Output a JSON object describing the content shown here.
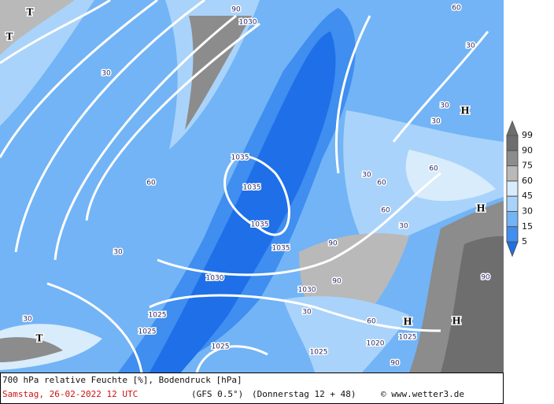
{
  "map": {
    "labels": [
      "T",
      "T",
      "1030",
      "90",
      "30",
      "H",
      "1035",
      "1035",
      "60",
      "1035",
      "1035",
      "H",
      "30",
      "1030",
      "1030",
      "90",
      "90",
      "1025",
      "1025",
      "1025",
      "1025",
      "1020",
      "1025",
      "H",
      "H",
      "T",
      "30",
      "60",
      "60",
      "30",
      "60",
      "30",
      "90",
      "30",
      "30",
      "60",
      "30",
      "90",
      "60",
      "30"
    ]
  },
  "legend": {
    "levels": [
      {
        "label": "99",
        "color": "#6e6e6e"
      },
      {
        "label": "90",
        "color": "#8c8c8c"
      },
      {
        "label": "75",
        "color": "#b9b9b9"
      },
      {
        "label": "60",
        "color": "#d8ecfb"
      },
      {
        "label": "45",
        "color": "#a9d3fa"
      },
      {
        "label": "30",
        "color": "#72b4f6"
      },
      {
        "label": "15",
        "color": "#3f8ef0"
      },
      {
        "label": "5",
        "color": "#1e6fe8"
      }
    ]
  },
  "footer": {
    "title": "700 hPa relative Feuchte [%], Bodendruck [hPa]",
    "date": "Samstag, 26-02-2022  12 UTC",
    "model": "(GFS 0.5°)",
    "forecast": "(Donnerstag 12 + 48)",
    "credit": "© www.wetter3.de"
  }
}
